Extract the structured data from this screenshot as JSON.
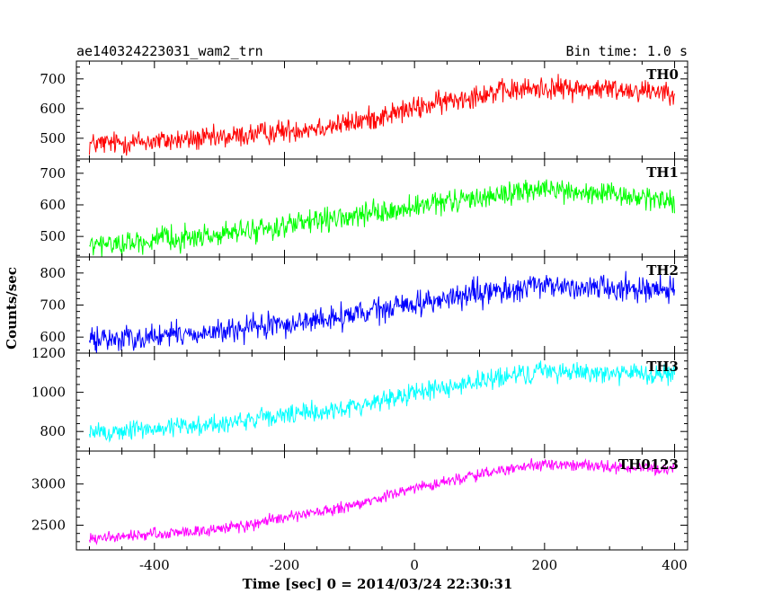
{
  "chart_data": {
    "type": "line",
    "title_left": "ae140324223031_wam2_trn",
    "title_right": "Bin time: 1.0 s",
    "xlabel": "Time [sec] 0 = 2014/03/24 22:30:31",
    "ylabel": "Counts/sec",
    "xlim": [
      -520,
      420
    ],
    "x_ticks": [
      -400,
      -200,
      0,
      200,
      400
    ],
    "x_data_range": [
      -500,
      400
    ],
    "bin_time": 1.0,
    "panels": [
      {
        "name": "TH0",
        "color": "#ff0000",
        "ylim": [
          430,
          760
        ],
        "y_ticks": [
          500,
          600,
          700
        ],
        "trend_x": [
          -500,
          -300,
          -100,
          0,
          100,
          200,
          300,
          400
        ],
        "trend_y": [
          480,
          500,
          550,
          600,
          650,
          670,
          665,
          660
        ],
        "noise": 30
      },
      {
        "name": "TH1",
        "color": "#00ff00",
        "ylim": [
          435,
          745
        ],
        "y_ticks": [
          500,
          600,
          700
        ],
        "trend_x": [
          -500,
          -300,
          -100,
          0,
          100,
          200,
          300,
          400
        ],
        "trend_y": [
          470,
          505,
          560,
          590,
          625,
          650,
          630,
          615
        ],
        "noise": 28
      },
      {
        "name": "TH2",
        "color": "#0000ff",
        "ylim": [
          550,
          850
        ],
        "y_ticks": [
          600,
          700,
          800
        ],
        "trend_x": [
          -500,
          -300,
          -100,
          0,
          100,
          200,
          300,
          400
        ],
        "trend_y": [
          590,
          615,
          665,
          705,
          735,
          760,
          755,
          750
        ],
        "noise": 30
      },
      {
        "name": "TH3",
        "color": "#00ffff",
        "ylim": [
          700,
          1200
        ],
        "y_ticks": [
          800,
          1000,
          1200
        ],
        "trend_x": [
          -500,
          -300,
          -100,
          0,
          100,
          200,
          300,
          400
        ],
        "trend_y": [
          790,
          840,
          920,
          1000,
          1055,
          1110,
          1100,
          1085
        ],
        "noise": 40
      },
      {
        "name": "TH0123",
        "color": "#ff00ff",
        "ylim": [
          2200,
          3400
        ],
        "y_ticks": [
          2500,
          3000
        ],
        "trend_x": [
          -500,
          -300,
          -100,
          0,
          100,
          200,
          300,
          400
        ],
        "trend_y": [
          2330,
          2450,
          2720,
          2950,
          3120,
          3240,
          3210,
          3180
        ],
        "noise": 55
      }
    ]
  }
}
